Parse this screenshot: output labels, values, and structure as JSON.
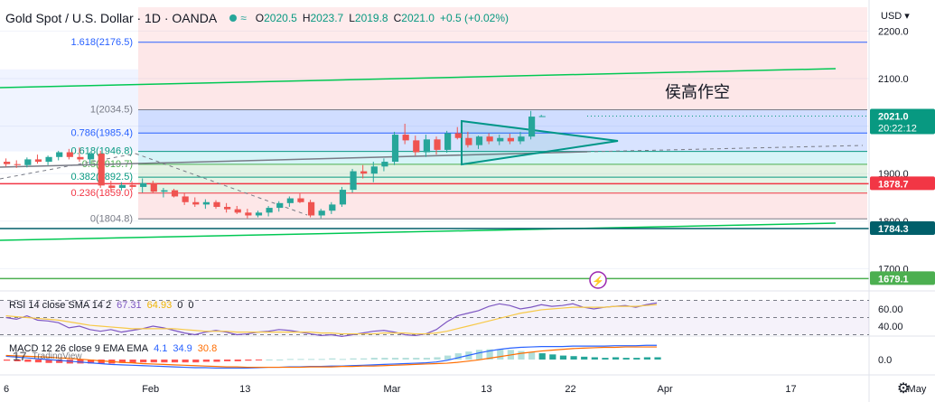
{
  "legend": {
    "title": "Gold Spot / U.S. Dollar · 1D · OANDA",
    "wave": "≈",
    "open_label": "O",
    "open": "2020.5",
    "high_label": "H",
    "high": "2023.7",
    "low_label": "L",
    "low": "2019.8",
    "close_label": "C",
    "close": "2021.0",
    "change": "+0.5 (+0.02%)"
  },
  "annotation": "侯高作空",
  "fib_levels": [
    {
      "label": "1.618(2176.5)",
      "value": 2176.5
    },
    {
      "label": "1(2034.5)",
      "value": 2034.5
    },
    {
      "label": "0.786(1985.4)",
      "value": 1985.4
    },
    {
      "label": "0.618(1946.8)",
      "value": 1946.8
    },
    {
      "label": "0.5(1919.7)",
      "value": 1919.7
    },
    {
      "label": "0.382(1892.5)",
      "value": 1892.5
    },
    {
      "label": "0.236(1859.0)",
      "value": 1859.0
    },
    {
      "label": "0(1804.8)",
      "value": 1804.8
    }
  ],
  "price_axis": {
    "currency": "USD",
    "ticks": [
      {
        "label": "2200.0",
        "value": 2200
      },
      {
        "label": "2100.0",
        "value": 2100
      },
      {
        "label": "1900.0",
        "value": 1900
      },
      {
        "label": "1800.0",
        "value": 1800
      },
      {
        "label": "1700.0",
        "value": 1700
      }
    ],
    "badges": [
      {
        "label": "2021.0",
        "sub": "20:22:12",
        "value": 2021.0,
        "color": "#089981"
      },
      {
        "label": "1878.7",
        "value": 1878.7,
        "color": "#f23645"
      },
      {
        "label": "1784.3",
        "value": 1784.3,
        "color": "#005f6a"
      },
      {
        "label": "1679.1",
        "value": 1679.1,
        "color": "#4caf50"
      }
    ]
  },
  "horizontal_lines": [
    {
      "value": 1878.7,
      "color": "#f23645"
    },
    {
      "value": 1784.3,
      "color": "#005f6a"
    },
    {
      "value": 1679.1,
      "color": "#4caf50"
    }
  ],
  "time_axis": [
    {
      "label": "6",
      "pos": 0
    },
    {
      "label": "Feb",
      "pos": 14
    },
    {
      "label": "13",
      "pos": 23
    },
    {
      "label": "Mar",
      "pos": 37
    },
    {
      "label": "13",
      "pos": 46
    },
    {
      "label": "22",
      "pos": 54
    },
    {
      "label": "Apr",
      "pos": 63
    },
    {
      "label": "17",
      "pos": 75
    },
    {
      "label": "May",
      "pos": 87
    }
  ],
  "rsi": {
    "name": "RSI 14 close SMA 14 2",
    "value": "67.31",
    "sma": "64.93",
    "extra1": "0",
    "extra2": "0",
    "ticks": [
      {
        "label": "60.00",
        "value": 60
      },
      {
        "label": "40.00",
        "value": 40
      }
    ],
    "rsi_line": [
      50,
      48,
      52,
      47,
      46,
      44,
      38,
      40,
      36,
      34,
      36,
      33,
      35,
      37,
      40,
      38,
      35,
      32,
      30,
      33,
      35,
      33,
      30,
      31,
      33,
      34,
      36,
      35,
      33,
      31,
      29,
      30,
      28,
      30,
      32,
      34,
      35,
      33,
      30,
      29,
      31,
      36,
      45,
      52,
      55,
      58,
      63,
      66,
      64,
      60,
      62,
      65,
      63,
      64,
      66,
      62,
      60,
      62,
      63,
      64,
      62,
      65,
      67
    ],
    "sma_line": [
      52,
      51,
      50,
      49,
      48,
      47,
      45,
      43,
      41,
      40,
      39,
      38,
      37,
      37,
      37,
      37,
      37,
      36,
      35,
      34,
      34,
      34,
      33,
      33,
      33,
      33,
      33,
      33,
      33,
      33,
      32,
      32,
      31,
      31,
      31,
      31,
      32,
      32,
      32,
      31,
      31,
      32,
      34,
      37,
      40,
      43,
      46,
      49,
      52,
      55,
      57,
      59,
      60,
      61,
      62,
      62,
      62,
      62,
      63,
      63,
      63,
      64,
      65
    ]
  },
  "macd": {
    "name": "MACD 12 26 close 9 EMA EMA",
    "hist": "4.1",
    "macd": "34.9",
    "signal": "30.8",
    "ticks": [
      {
        "label": "0.0",
        "value": 0
      }
    ],
    "macd_line": [
      8,
      6,
      4,
      2,
      0,
      -2,
      -4,
      -6,
      -8,
      -10,
      -12,
      -13,
      -14,
      -15,
      -16,
      -17,
      -18,
      -19,
      -20,
      -20,
      -21,
      -21,
      -21,
      -21,
      -20,
      -19,
      -19,
      -18,
      -18,
      -17,
      -17,
      -16,
      -16,
      -15,
      -14,
      -13,
      -12,
      -11,
      -10,
      -9,
      -8,
      -6,
      -2,
      4,
      10,
      16,
      21,
      25,
      28,
      30,
      31,
      32,
      32,
      32,
      33,
      33,
      33,
      33,
      34,
      34,
      34,
      35,
      35
    ],
    "signal_line": [
      10,
      9,
      8,
      7,
      6,
      4,
      3,
      1,
      -1,
      -3,
      -5,
      -7,
      -8,
      -10,
      -11,
      -12,
      -13,
      -14,
      -15,
      -16,
      -17,
      -18,
      -18,
      -19,
      -19,
      -19,
      -19,
      -19,
      -19,
      -18,
      -18,
      -18,
      -17,
      -17,
      -16,
      -16,
      -15,
      -14,
      -13,
      -12,
      -11,
      -10,
      -9,
      -7,
      -4,
      -1,
      3,
      7,
      11,
      15,
      18,
      21,
      23,
      25,
      27,
      28,
      29,
      30,
      30,
      31,
      31,
      31,
      31
    ]
  },
  "candles": [
    {
      "o": 1925,
      "h": 1932,
      "l": 1915,
      "c": 1920
    },
    {
      "o": 1920,
      "h": 1928,
      "l": 1912,
      "c": 1918
    },
    {
      "o": 1918,
      "h": 1934,
      "l": 1913,
      "c": 1930
    },
    {
      "o": 1930,
      "h": 1940,
      "l": 1921,
      "c": 1925
    },
    {
      "o": 1925,
      "h": 1938,
      "l": 1918,
      "c": 1935
    },
    {
      "o": 1935,
      "h": 1948,
      "l": 1928,
      "c": 1945
    },
    {
      "o": 1945,
      "h": 1952,
      "l": 1930,
      "c": 1935
    },
    {
      "o": 1935,
      "h": 1955,
      "l": 1925,
      "c": 1930
    },
    {
      "o": 1930,
      "h": 1945,
      "l": 1920,
      "c": 1942
    },
    {
      "o": 1942,
      "h": 1948,
      "l": 1870,
      "c": 1875
    },
    {
      "o": 1875,
      "h": 1885,
      "l": 1862,
      "c": 1870
    },
    {
      "o": 1870,
      "h": 1882,
      "l": 1864,
      "c": 1876
    },
    {
      "o": 1876,
      "h": 1884,
      "l": 1866,
      "c": 1872
    },
    {
      "o": 1872,
      "h": 1890,
      "l": 1860,
      "c": 1880
    },
    {
      "o": 1880,
      "h": 1885,
      "l": 1860,
      "c": 1862
    },
    {
      "o": 1862,
      "h": 1870,
      "l": 1850,
      "c": 1865
    },
    {
      "o": 1865,
      "h": 1868,
      "l": 1850,
      "c": 1852
    },
    {
      "o": 1852,
      "h": 1860,
      "l": 1834,
      "c": 1840
    },
    {
      "o": 1840,
      "h": 1850,
      "l": 1830,
      "c": 1835
    },
    {
      "o": 1835,
      "h": 1846,
      "l": 1826,
      "c": 1840
    },
    {
      "o": 1840,
      "h": 1844,
      "l": 1826,
      "c": 1830
    },
    {
      "o": 1830,
      "h": 1838,
      "l": 1818,
      "c": 1825
    },
    {
      "o": 1825,
      "h": 1832,
      "l": 1815,
      "c": 1818
    },
    {
      "o": 1818,
      "h": 1826,
      "l": 1806,
      "c": 1812
    },
    {
      "o": 1812,
      "h": 1822,
      "l": 1808,
      "c": 1818
    },
    {
      "o": 1818,
      "h": 1832,
      "l": 1810,
      "c": 1828
    },
    {
      "o": 1828,
      "h": 1842,
      "l": 1820,
      "c": 1838
    },
    {
      "o": 1838,
      "h": 1852,
      "l": 1830,
      "c": 1848
    },
    {
      "o": 1848,
      "h": 1858,
      "l": 1838,
      "c": 1840
    },
    {
      "o": 1840,
      "h": 1845,
      "l": 1808,
      "c": 1812
    },
    {
      "o": 1812,
      "h": 1826,
      "l": 1806,
      "c": 1822
    },
    {
      "o": 1822,
      "h": 1840,
      "l": 1815,
      "c": 1835
    },
    {
      "o": 1835,
      "h": 1872,
      "l": 1830,
      "c": 1866
    },
    {
      "o": 1866,
      "h": 1910,
      "l": 1860,
      "c": 1905
    },
    {
      "o": 1905,
      "h": 1918,
      "l": 1890,
      "c": 1900
    },
    {
      "o": 1900,
      "h": 1925,
      "l": 1882,
      "c": 1915
    },
    {
      "o": 1915,
      "h": 1932,
      "l": 1905,
      "c": 1925
    },
    {
      "o": 1925,
      "h": 1988,
      "l": 1918,
      "c": 1982
    },
    {
      "o": 1982,
      "h": 2005,
      "l": 1962,
      "c": 1970
    },
    {
      "o": 1970,
      "h": 1980,
      "l": 1938,
      "c": 1945
    },
    {
      "o": 1945,
      "h": 1982,
      "l": 1935,
      "c": 1972
    },
    {
      "o": 1972,
      "h": 1978,
      "l": 1940,
      "c": 1950
    },
    {
      "o": 1950,
      "h": 1990,
      "l": 1944,
      "c": 1985
    },
    {
      "o": 1985,
      "h": 1998,
      "l": 1972,
      "c": 1975
    },
    {
      "o": 1975,
      "h": 1988,
      "l": 1955,
      "c": 1960
    },
    {
      "o": 1960,
      "h": 1980,
      "l": 1952,
      "c": 1978
    },
    {
      "o": 1978,
      "h": 1985,
      "l": 1962,
      "c": 1968
    },
    {
      "o": 1968,
      "h": 1982,
      "l": 1960,
      "c": 1975
    },
    {
      "o": 1975,
      "h": 1984,
      "l": 1962,
      "c": 1968
    },
    {
      "o": 1968,
      "h": 1988,
      "l": 1962,
      "c": 1978
    },
    {
      "o": 1978,
      "h": 2032,
      "l": 1972,
      "c": 2020
    },
    {
      "o": 2020.5,
      "h": 2023.7,
      "l": 2019.8,
      "c": 2021.0
    }
  ]
}
